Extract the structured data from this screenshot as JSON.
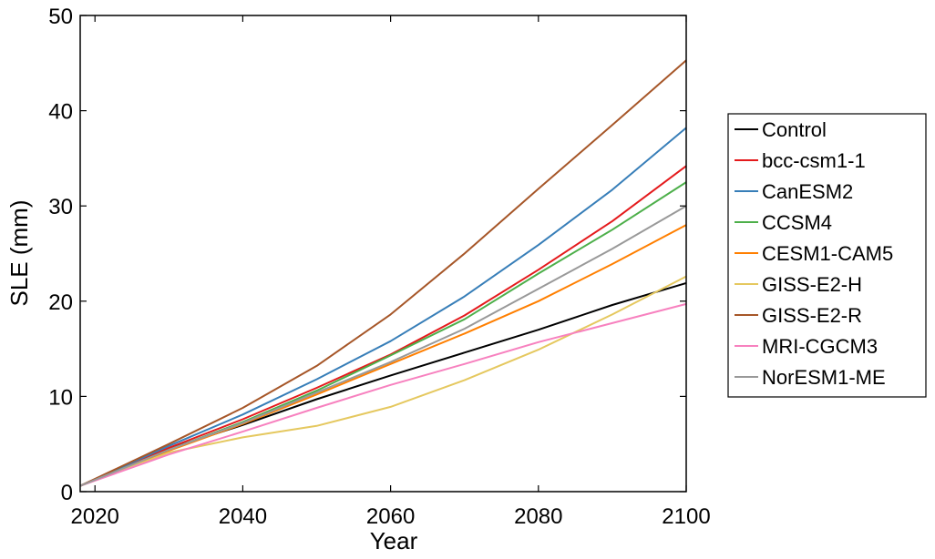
{
  "chart_data": {
    "type": "line",
    "xlabel": "Year",
    "ylabel": "SLE (mm)",
    "xlim": [
      2018,
      2100
    ],
    "ylim": [
      0,
      50
    ],
    "xticks": [
      2020,
      2040,
      2060,
      2080,
      2100
    ],
    "yticks": [
      0,
      10,
      20,
      30,
      40,
      50
    ],
    "grid": false,
    "legend_position": "right",
    "x": [
      2018,
      2030,
      2040,
      2050,
      2060,
      2070,
      2080,
      2090,
      2100
    ],
    "series": [
      {
        "name": "Control",
        "color": "#000000",
        "values": [
          0.6,
          4.5,
          7.0,
          9.7,
          12.2,
          14.6,
          17.0,
          19.6,
          21.9
        ]
      },
      {
        "name": "bcc-csm1-1",
        "color": "#e41a1c",
        "values": [
          0.6,
          4.6,
          7.6,
          10.9,
          14.4,
          18.5,
          23.3,
          28.4,
          34.2
        ]
      },
      {
        "name": "CanESM2",
        "color": "#377eb8",
        "values": [
          0.6,
          4.8,
          8.1,
          11.8,
          15.8,
          20.5,
          25.9,
          31.7,
          38.2
        ]
      },
      {
        "name": "CCSM4",
        "color": "#4daf4a",
        "values": [
          0.6,
          4.4,
          7.3,
          10.6,
          14.3,
          18.1,
          22.9,
          27.5,
          32.5
        ]
      },
      {
        "name": "CESM1-CAM5",
        "color": "#ff7f00",
        "values": [
          0.6,
          4.3,
          7.1,
          10.2,
          13.4,
          16.6,
          20.0,
          23.9,
          28.0
        ]
      },
      {
        "name": "GISS-E2-H",
        "color": "#e5c85f",
        "values": [
          0.6,
          4.1,
          5.7,
          6.9,
          8.9,
          11.7,
          14.9,
          18.6,
          22.6
        ]
      },
      {
        "name": "GISS-E2-R",
        "color": "#a65628",
        "values": [
          0.6,
          5.0,
          8.8,
          13.2,
          18.6,
          25.0,
          31.8,
          38.5,
          45.3
        ]
      },
      {
        "name": "MRI-CGCM3",
        "color": "#f781bf",
        "values": [
          0.6,
          3.9,
          6.3,
          8.8,
          11.2,
          13.4,
          15.7,
          17.7,
          19.7
        ]
      },
      {
        "name": "NorESM1-ME",
        "color": "#999999",
        "values": [
          0.6,
          4.4,
          7.2,
          10.4,
          13.6,
          17.1,
          21.3,
          25.5,
          30.0
        ]
      }
    ]
  }
}
